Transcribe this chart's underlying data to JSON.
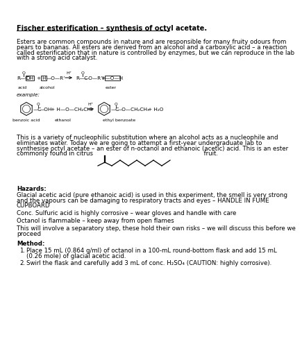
{
  "title": "Fischer esterification – synthesis of octyl acetate.",
  "bg_color": "#ffffff",
  "intro_lines": [
    "Esters are common compounds in nature and are responsible for many fruity odours from",
    "pears to bananas. All esters are derived from an alcohol and a carboxylic acid – a reaction",
    "called esterification that in nature is controlled by enzymes, but we can reproduce in the lab",
    "with a strong acid catalyst."
  ],
  "mid_lines": [
    "This is a variety of nucleophilic substitution where an alcohol acts as a nucleophile and",
    "eliminates water. Today we are going to attempt a first-year undergraduate lab to",
    "synthesise octyl acetate – an ester of n-octanol and ethanoic (acetic) acid. This is an ester",
    "commonly found in citrus                                                          fruit."
  ],
  "hazards_title": "Hazards:",
  "hazard_lines": [
    [
      "Glacial acetic acid (pure ethanoic acid) is used in this experiment, the smell is very strong",
      "and the vapours can be damaging to respiratory tracts and eyes – HANDLE IN FUME",
      "CUPBOARD"
    ],
    [
      "Conc. Sulfuric acid is highly corrosive – wear gloves and handle with care"
    ],
    [
      "Octanol is flammable – keep away from open flames"
    ],
    [
      "This will involve a separatory step, these hold their own risks – we will discuss this before we",
      "proceed"
    ]
  ],
  "method_title": "Method:",
  "method_items": [
    [
      "Place 15 mL (0.864 g/ml) of octanol in a 100-mL round-bottom flask and add 15 mL",
      "(0.26 mole) of glacial acetic acid."
    ],
    [
      "Swirl the flask and carefully add 3 mL of conc. H₂SO₄ (CAUTION: highly corrosive)."
    ]
  ]
}
